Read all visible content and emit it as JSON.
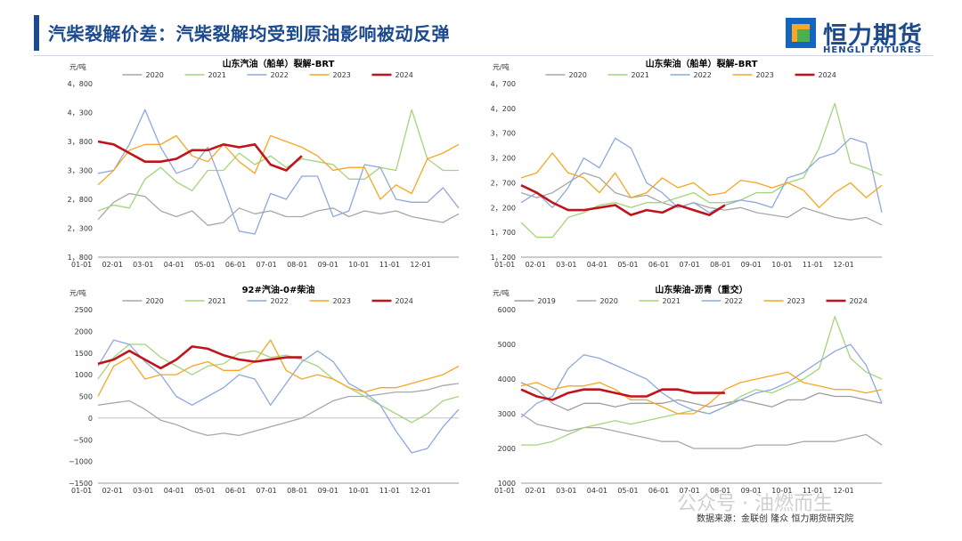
{
  "page": {
    "title": "汽柴裂解价差：汽柴裂解均受到原油影响被动反弹",
    "logo_text": "恒力期货",
    "logo_sub": "HENGLI FUTURES",
    "source": "数据来源：金联创  隆众  恒力期货研究院",
    "watermark": "公众号 · 油燃而生"
  },
  "colors": {
    "2019": "#9e9e9e",
    "2020": "#a8a8a8",
    "2021": "#a5d47c",
    "2022": "#8fa8dc",
    "2023": "#f5a623",
    "2024": "#c0141c"
  },
  "chart_data": [
    {
      "type": "line",
      "title": "山东汽油（船单）裂解-BRT",
      "unit": "元/吨",
      "ylim": [
        1800,
        4800
      ],
      "yticks": [
        "1，800",
        "2，300",
        "2，800",
        "3，300",
        "3，800",
        "4，300",
        "4，800"
      ],
      "xticks": [
        "01-01",
        "02-01",
        "03-01",
        "04-01",
        "05-01",
        "06-01",
        "07-01",
        "08-01",
        "09-01",
        "10-01",
        "11-01",
        "12-01"
      ],
      "series": [
        {
          "name": "2020",
          "values": [
            2450,
            2750,
            2900,
            2850,
            2600,
            2500,
            2600,
            2350,
            2400,
            2650,
            2550,
            2600,
            2500,
            2500,
            2600,
            2650,
            2500,
            2600,
            2550,
            2600,
            2500,
            2450,
            2400,
            2550
          ]
        },
        {
          "name": "2021",
          "values": [
            2600,
            2700,
            2650,
            3150,
            3350,
            3100,
            2950,
            3300,
            3300,
            3600,
            3400,
            3550,
            3350,
            3500,
            3450,
            3400,
            3150,
            3150,
            3350,
            3300,
            4350,
            3500,
            3300,
            3300
          ]
        },
        {
          "name": "2022",
          "values": [
            3250,
            3300,
            3750,
            4350,
            3700,
            3250,
            3350,
            3700,
            3000,
            2250,
            2200,
            2900,
            2800,
            3200,
            3200,
            2500,
            2600,
            3400,
            3350,
            2800,
            2750,
            2750,
            3000,
            2650
          ]
        },
        {
          "name": "2023",
          "values": [
            3050,
            3300,
            3650,
            3750,
            3750,
            3900,
            3550,
            3450,
            3750,
            3450,
            3250,
            3900,
            3800,
            3700,
            3550,
            3300,
            3350,
            3350,
            2800,
            3050,
            2900,
            3500,
            3600,
            3750
          ]
        },
        {
          "name": "2024",
          "values": [
            3800,
            3750,
            3600,
            3450,
            3450,
            3500,
            3650,
            3650,
            3750,
            3700,
            3750,
            3400,
            3300,
            3550
          ]
        }
      ]
    },
    {
      "type": "line",
      "title": "山东柴油（船单）裂解-BRT",
      "unit": "元/吨",
      "ylim": [
        1200,
        4700
      ],
      "yticks": [
        "1，200",
        "1，700",
        "2，200",
        "2，700",
        "3，200",
        "3，700",
        "4，200",
        "4，700"
      ],
      "xticks": [
        "01-01",
        "02-01",
        "03-01",
        "04-01",
        "05-01",
        "06-01",
        "07-01",
        "08-01",
        "09-01",
        "10-01",
        "11-01",
        "12-01"
      ],
      "series": [
        {
          "name": "2020",
          "values": [
            2500,
            2400,
            2500,
            2700,
            2900,
            2800,
            2500,
            2400,
            2450,
            2300,
            2200,
            2300,
            2200,
            2150,
            2200,
            2100,
            2050,
            2000,
            2200,
            2100,
            2000,
            1950,
            2000,
            1850
          ]
        },
        {
          "name": "2021",
          "values": [
            1900,
            1600,
            1600,
            2000,
            2100,
            2250,
            2300,
            2200,
            2300,
            2300,
            2400,
            2500,
            2300,
            2300,
            2350,
            2500,
            2500,
            2700,
            2800,
            3400,
            4300,
            3100,
            3000,
            2850
          ]
        },
        {
          "name": "2022",
          "values": [
            2300,
            2500,
            2200,
            2600,
            3200,
            3000,
            3600,
            3400,
            2700,
            2500,
            2200,
            2300,
            2100,
            2250,
            2350,
            2300,
            2200,
            2800,
            2900,
            3200,
            3300,
            3600,
            3500,
            2100
          ]
        },
        {
          "name": "2023",
          "values": [
            2800,
            2900,
            3300,
            2900,
            2800,
            2500,
            2900,
            2400,
            2500,
            2800,
            2600,
            2700,
            2450,
            2500,
            2750,
            2700,
            2600,
            2700,
            2550,
            2200,
            2500,
            2700,
            2400,
            2650
          ]
        },
        {
          "name": "2024",
          "values": [
            2650,
            2500,
            2300,
            2150,
            2150,
            2200,
            2250,
            2050,
            2150,
            2100,
            2250,
            2150,
            2050,
            2250
          ]
        }
      ]
    },
    {
      "type": "line",
      "title": "92#汽油-0#柴油",
      "unit": "元/吨",
      "ylim": [
        -1500,
        2500
      ],
      "yticks": [
        "−1500",
        "−1000",
        "−500",
        "0",
        "500",
        "1000",
        "1500",
        "2000",
        "2500"
      ],
      "xticks": [
        "01-01",
        "02-01",
        "03-01",
        "04-01",
        "05-01",
        "06-01",
        "07-01",
        "08-01",
        "09-01",
        "10-01",
        "11-01",
        "12-01"
      ],
      "series": [
        {
          "name": "2020",
          "values": [
            300,
            350,
            400,
            200,
            -50,
            -150,
            -300,
            -400,
            -350,
            -400,
            -300,
            -200,
            -100,
            0,
            200,
            400,
            500,
            500,
            550,
            600,
            600,
            650,
            750,
            800
          ]
        },
        {
          "name": "2021",
          "values": [
            900,
            1400,
            1700,
            1700,
            1400,
            1200,
            1000,
            1200,
            1250,
            1500,
            1550,
            1400,
            1450,
            1350,
            1200,
            900,
            700,
            500,
            300,
            100,
            -100,
            100,
            400,
            500
          ]
        },
        {
          "name": "2022",
          "values": [
            1200,
            1800,
            1700,
            1300,
            1000,
            500,
            300,
            500,
            700,
            1000,
            900,
            300,
            800,
            1300,
            1550,
            1300,
            800,
            600,
            300,
            -300,
            -800,
            -700,
            -200,
            200
          ]
        },
        {
          "name": "2023",
          "values": [
            500,
            1200,
            1400,
            900,
            1000,
            1000,
            1200,
            1300,
            1100,
            1100,
            1300,
            1800,
            1100,
            900,
            1000,
            900,
            700,
            600,
            700,
            700,
            800,
            900,
            1000,
            1200
          ]
        },
        {
          "name": "2024",
          "values": [
            1250,
            1350,
            1550,
            1350,
            1150,
            1350,
            1650,
            1600,
            1450,
            1350,
            1300,
            1350,
            1400,
            1400
          ]
        }
      ]
    },
    {
      "type": "line",
      "title": "山东柴油-沥青（重交）",
      "unit": "元/吨",
      "ylim": [
        1000,
        6000
      ],
      "yticks": [
        "1000",
        "2000",
        "3000",
        "4000",
        "5000",
        "6000"
      ],
      "xticks": [
        "01-01",
        "02-01",
        "03-01",
        "04-01",
        "05-01",
        "06-01",
        "07-01",
        "08-01",
        "09-01",
        "10-01",
        "11-01",
        "12-01"
      ],
      "series": [
        {
          "name": "2019",
          "values": [
            3900,
            3700,
            3300,
            3100,
            3300,
            3300,
            3200,
            3300,
            3300,
            3300,
            3400,
            3300,
            3200,
            3300,
            3400,
            3300,
            3200,
            3400,
            3400,
            3600,
            3500,
            3500,
            3400,
            3300
          ]
        },
        {
          "name": "2020",
          "values": [
            3000,
            2700,
            2600,
            2500,
            2600,
            2600,
            2500,
            2400,
            2300,
            2200,
            2200,
            2000,
            2000,
            2000,
            2000,
            2100,
            2100,
            2100,
            2200,
            2200,
            2200,
            2300,
            2400,
            2100
          ]
        },
        {
          "name": "2021",
          "values": [
            2100,
            2100,
            2200,
            2400,
            2600,
            2700,
            2800,
            2700,
            2800,
            2900,
            3000,
            3100,
            3000,
            3200,
            3500,
            3700,
            3600,
            3800,
            4000,
            4300,
            5800,
            4600,
            4200,
            4000
          ]
        },
        {
          "name": "2022",
          "values": [
            2900,
            3300,
            3500,
            4300,
            4700,
            4600,
            4400,
            4200,
            4000,
            3600,
            3300,
            3100,
            3000,
            3200,
            3400,
            3600,
            3700,
            3900,
            4200,
            4500,
            4800,
            5000,
            4400,
            3300
          ]
        },
        {
          "name": "2023",
          "values": [
            3800,
            3900,
            3700,
            3800,
            3800,
            3900,
            3700,
            3400,
            3400,
            3200,
            3000,
            3000,
            3300,
            3700,
            3900,
            4000,
            4100,
            4200,
            3900,
            3800,
            3700,
            3700,
            3600,
            3700
          ]
        },
        {
          "name": "2024",
          "values": [
            3700,
            3500,
            3400,
            3600,
            3700,
            3700,
            3600,
            3500,
            3500,
            3700,
            3700,
            3600,
            3600,
            3600
          ]
        }
      ]
    }
  ]
}
